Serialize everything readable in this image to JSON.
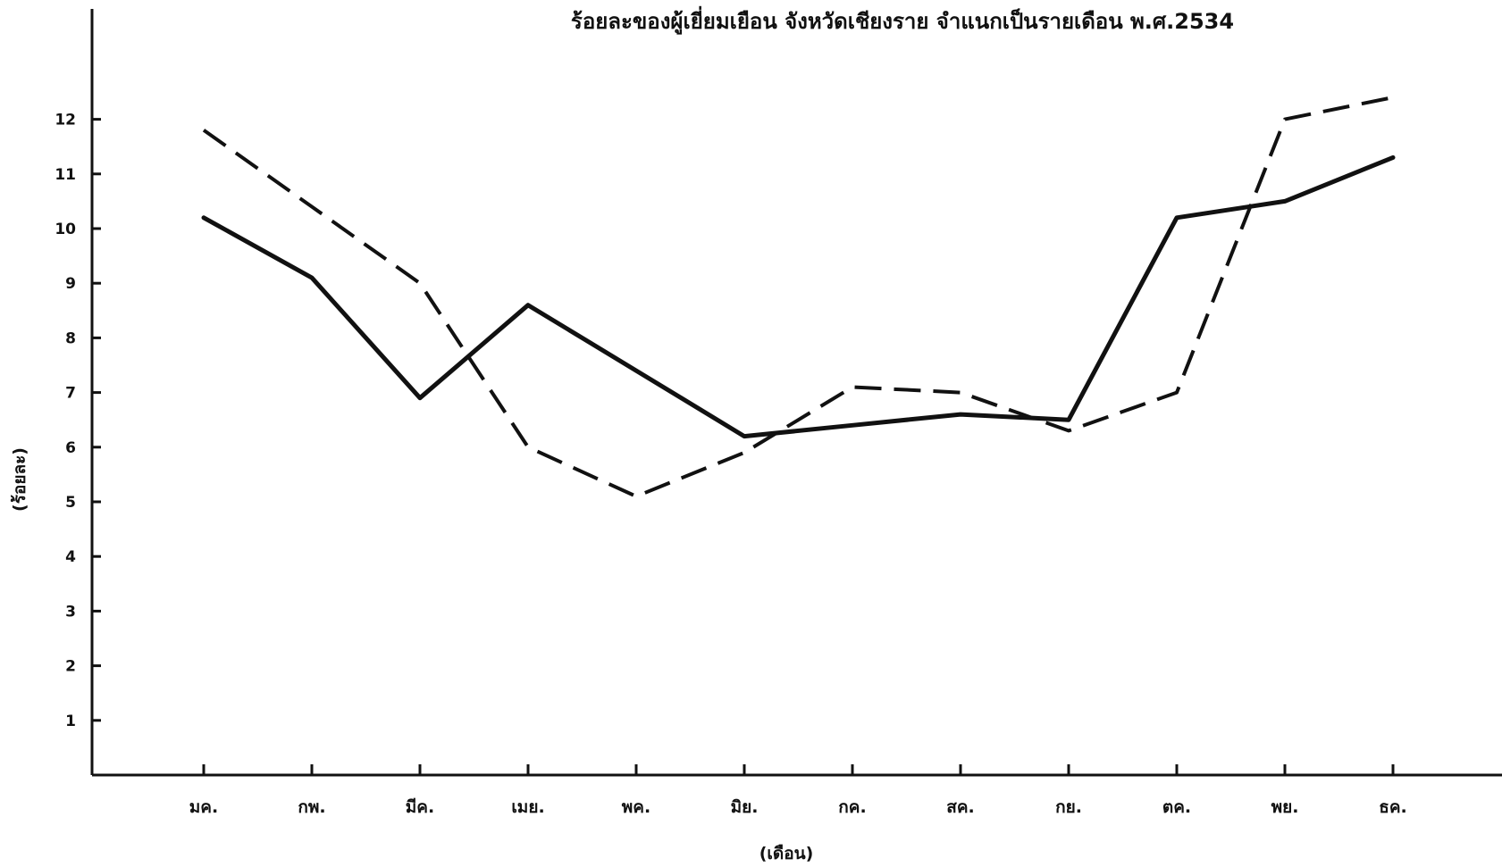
{
  "chart_data": {
    "type": "line",
    "title": "ร้อยละของผู้เยี่ยมเยือน จังหวัดเชียงราย จำแนกเป็นรายเดือน พ.ศ.2534",
    "xlabel": "(เดือน)",
    "ylabel": "(ร้อยละ)",
    "categories": [
      "มค.",
      "กพ.",
      "มีค.",
      "เมย.",
      "พค.",
      "มิย.",
      "กค.",
      "สค.",
      "กย.",
      "ตค.",
      "พย.",
      "ธค."
    ],
    "y_ticks": [
      "1",
      "2",
      "3",
      "4",
      "5",
      "6",
      "7",
      "8",
      "9",
      "10",
      "11",
      "12"
    ],
    "ylim": [
      0,
      12.5
    ],
    "grid": false,
    "series": [
      {
        "style": "solid",
        "values": [
          10.2,
          9.1,
          6.9,
          8.6,
          7.4,
          6.2,
          6.4,
          6.6,
          6.5,
          10.2,
          10.5,
          11.3
        ]
      },
      {
        "style": "dashed",
        "values": [
          11.8,
          10.4,
          9.0,
          6.0,
          5.1,
          5.9,
          7.1,
          7.0,
          6.3,
          7.0,
          12.0,
          12.4
        ]
      }
    ]
  }
}
